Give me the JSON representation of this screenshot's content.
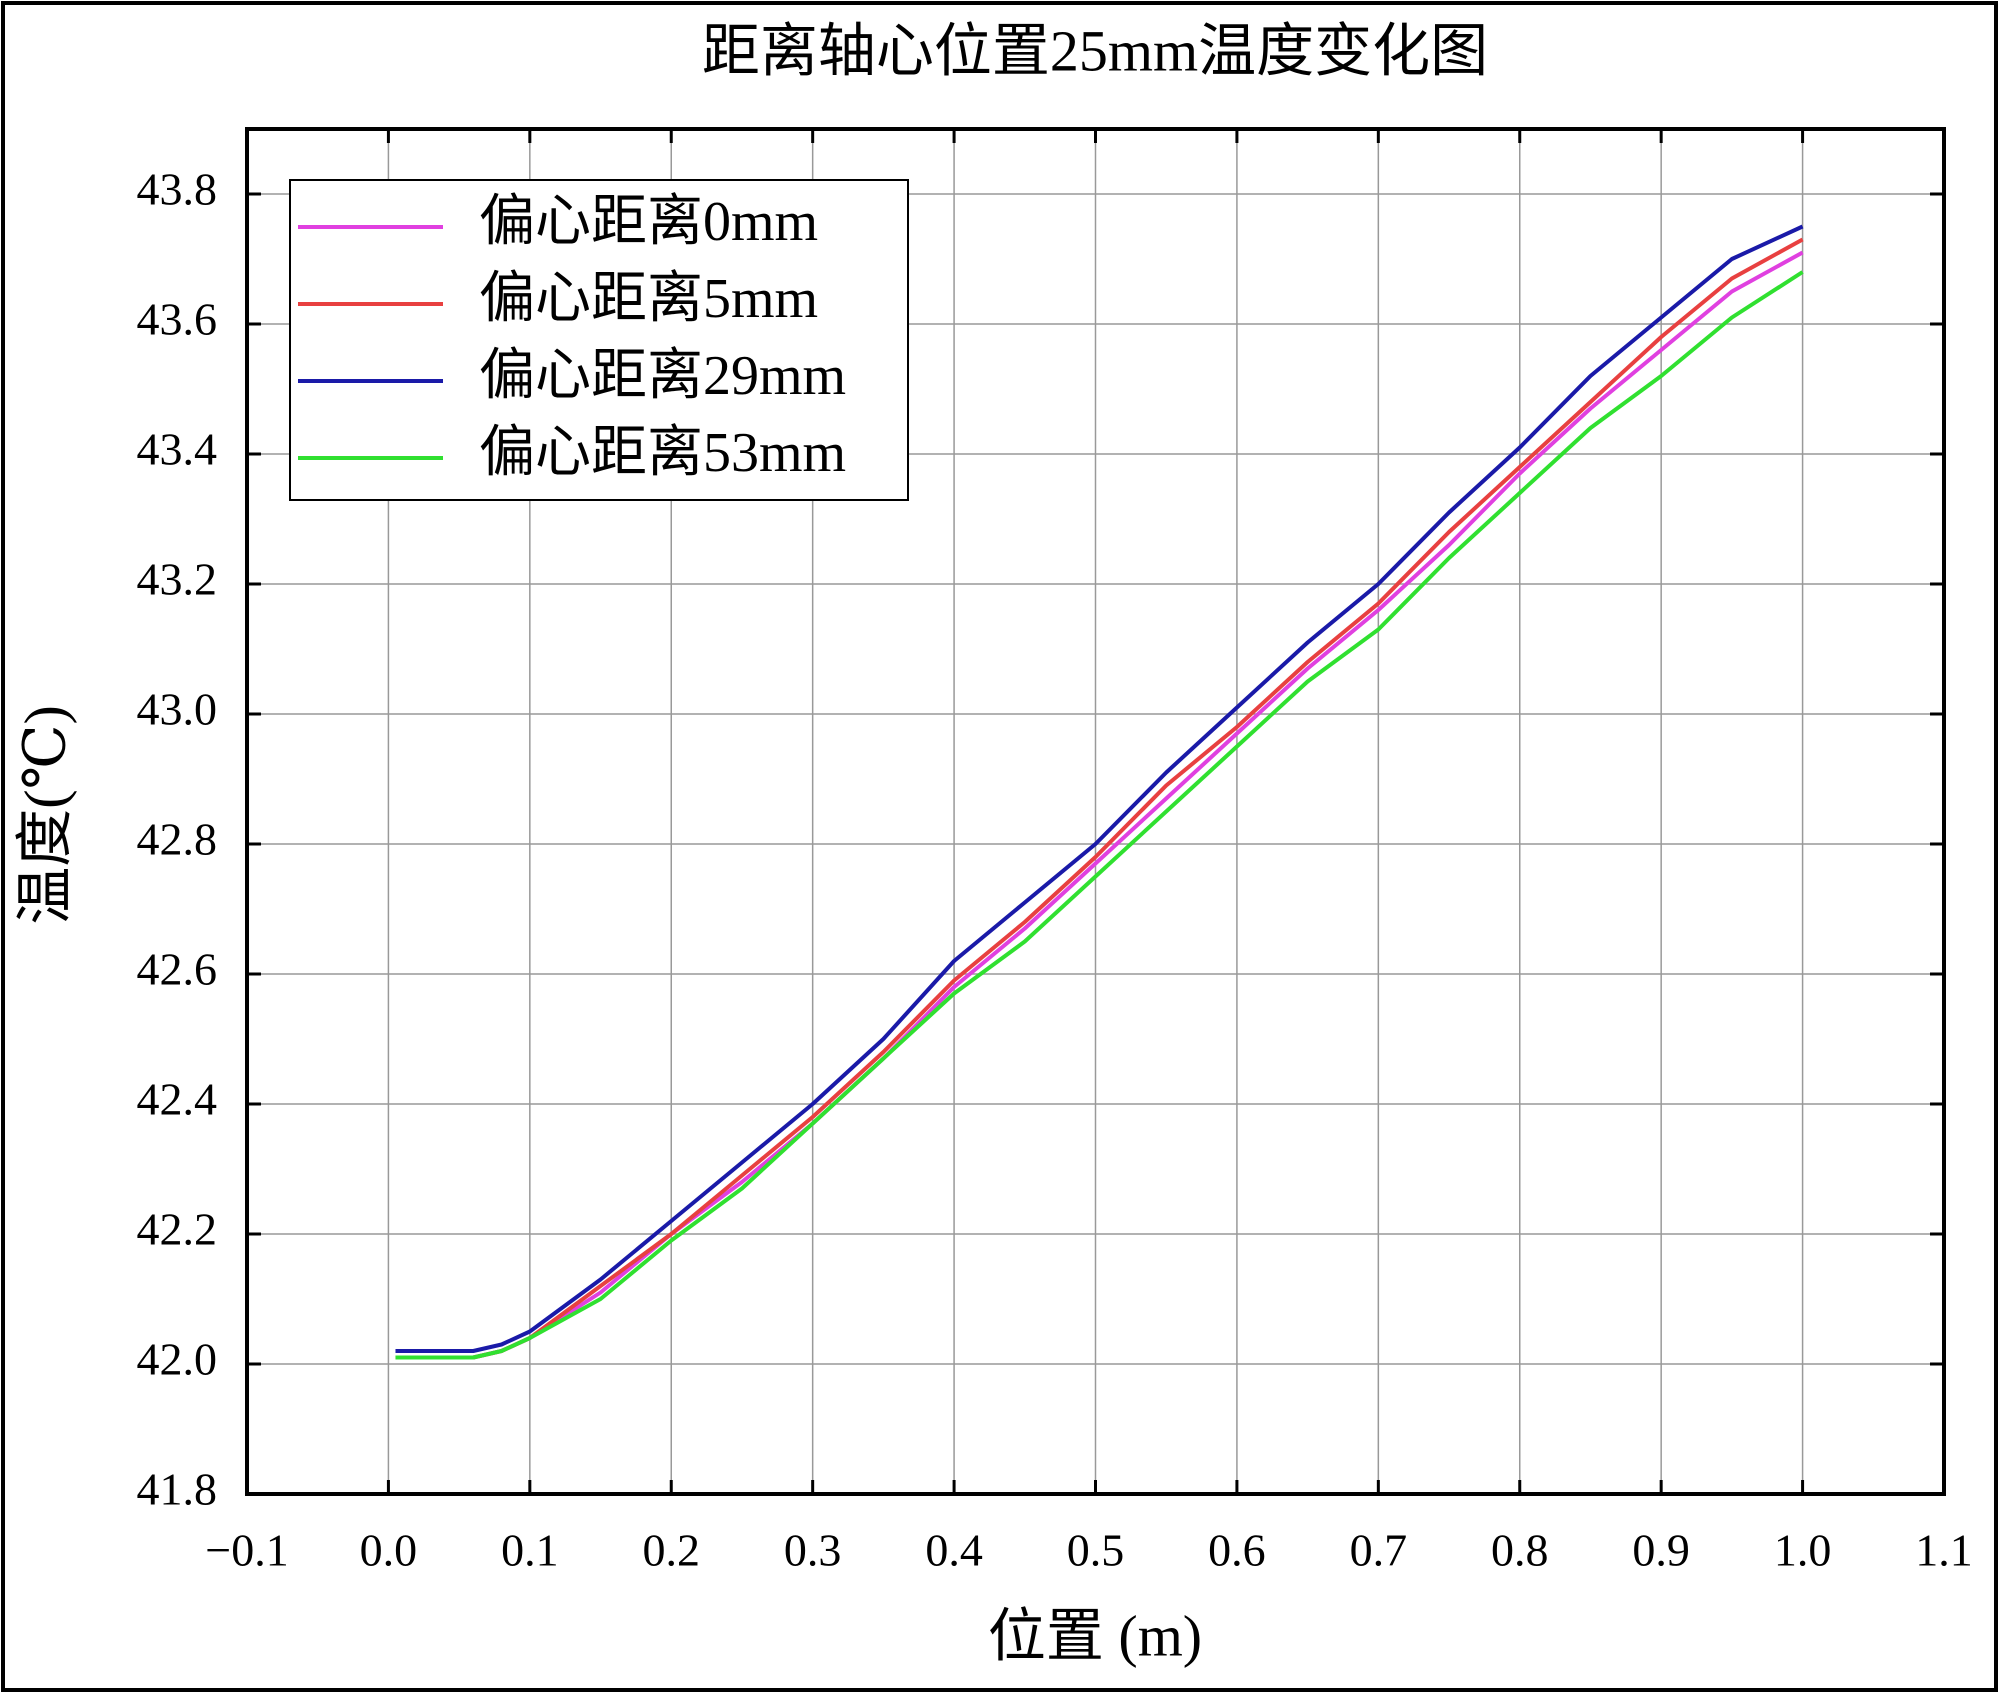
{
  "chart_data": {
    "type": "line",
    "title": "距离轴心位置25mm温度变化图",
    "x_label": "位置 (m)",
    "y_label": "温度(℃)",
    "x": [
      0.005,
      0.03,
      0.06,
      0.08,
      0.1,
      0.15,
      0.2,
      0.25,
      0.3,
      0.35,
      0.4,
      0.45,
      0.5,
      0.55,
      0.6,
      0.65,
      0.7,
      0.75,
      0.8,
      0.85,
      0.9,
      0.95,
      1.0
    ],
    "series": [
      {
        "name": "偏心距离0mm",
        "color": "#e040e0",
        "values": [
          42.01,
          42.01,
          42.01,
          42.02,
          42.04,
          42.11,
          42.2,
          42.28,
          42.37,
          42.47,
          42.58,
          42.67,
          42.77,
          42.87,
          42.97,
          43.07,
          43.16,
          43.26,
          43.37,
          43.47,
          43.56,
          43.65,
          43.71
        ]
      },
      {
        "name": "偏心距离5mm",
        "color": "#e84040",
        "values": [
          42.01,
          42.01,
          42.01,
          42.02,
          42.04,
          42.12,
          42.2,
          42.29,
          42.38,
          42.48,
          42.59,
          42.68,
          42.78,
          42.89,
          42.98,
          43.08,
          43.17,
          43.28,
          43.38,
          43.48,
          43.58,
          43.67,
          43.73
        ]
      },
      {
        "name": "偏心距离29mm",
        "color": "#1a1aa8",
        "values": [
          42.02,
          42.02,
          42.02,
          42.03,
          42.05,
          42.13,
          42.22,
          42.31,
          42.4,
          42.5,
          42.62,
          42.71,
          42.8,
          42.91,
          43.01,
          43.11,
          43.2,
          43.31,
          43.41,
          43.52,
          43.61,
          43.7,
          43.75
        ]
      },
      {
        "name": "偏心距离53mm",
        "color": "#30e030",
        "values": [
          42.01,
          42.01,
          42.01,
          42.02,
          42.04,
          42.1,
          42.19,
          42.27,
          42.37,
          42.47,
          42.57,
          42.65,
          42.75,
          42.85,
          42.95,
          43.05,
          43.13,
          43.24,
          43.34,
          43.44,
          43.52,
          43.61,
          43.68
        ]
      }
    ],
    "xlim": [
      -0.1,
      1.1
    ],
    "xticks": [
      {
        "value": -0.1,
        "label": "−0.1"
      },
      {
        "value": 0,
        "label": "0.0"
      },
      0.1,
      0.2,
      0.3,
      0.4,
      0.5,
      0.6,
      0.7,
      0.8,
      0.9,
      {
        "value": 1,
        "label": "1.0"
      },
      1.1
    ],
    "ylim": [
      41.8,
      43.9
    ],
    "yticks": [
      41.8,
      {
        "value": 42,
        "label": "42.0"
      },
      42.2,
      42.4,
      42.6,
      42.8,
      {
        "value": 43,
        "label": "43.0"
      },
      43.2,
      43.4,
      43.6,
      43.8
    ],
    "grid": true,
    "legend": "upper left"
  }
}
